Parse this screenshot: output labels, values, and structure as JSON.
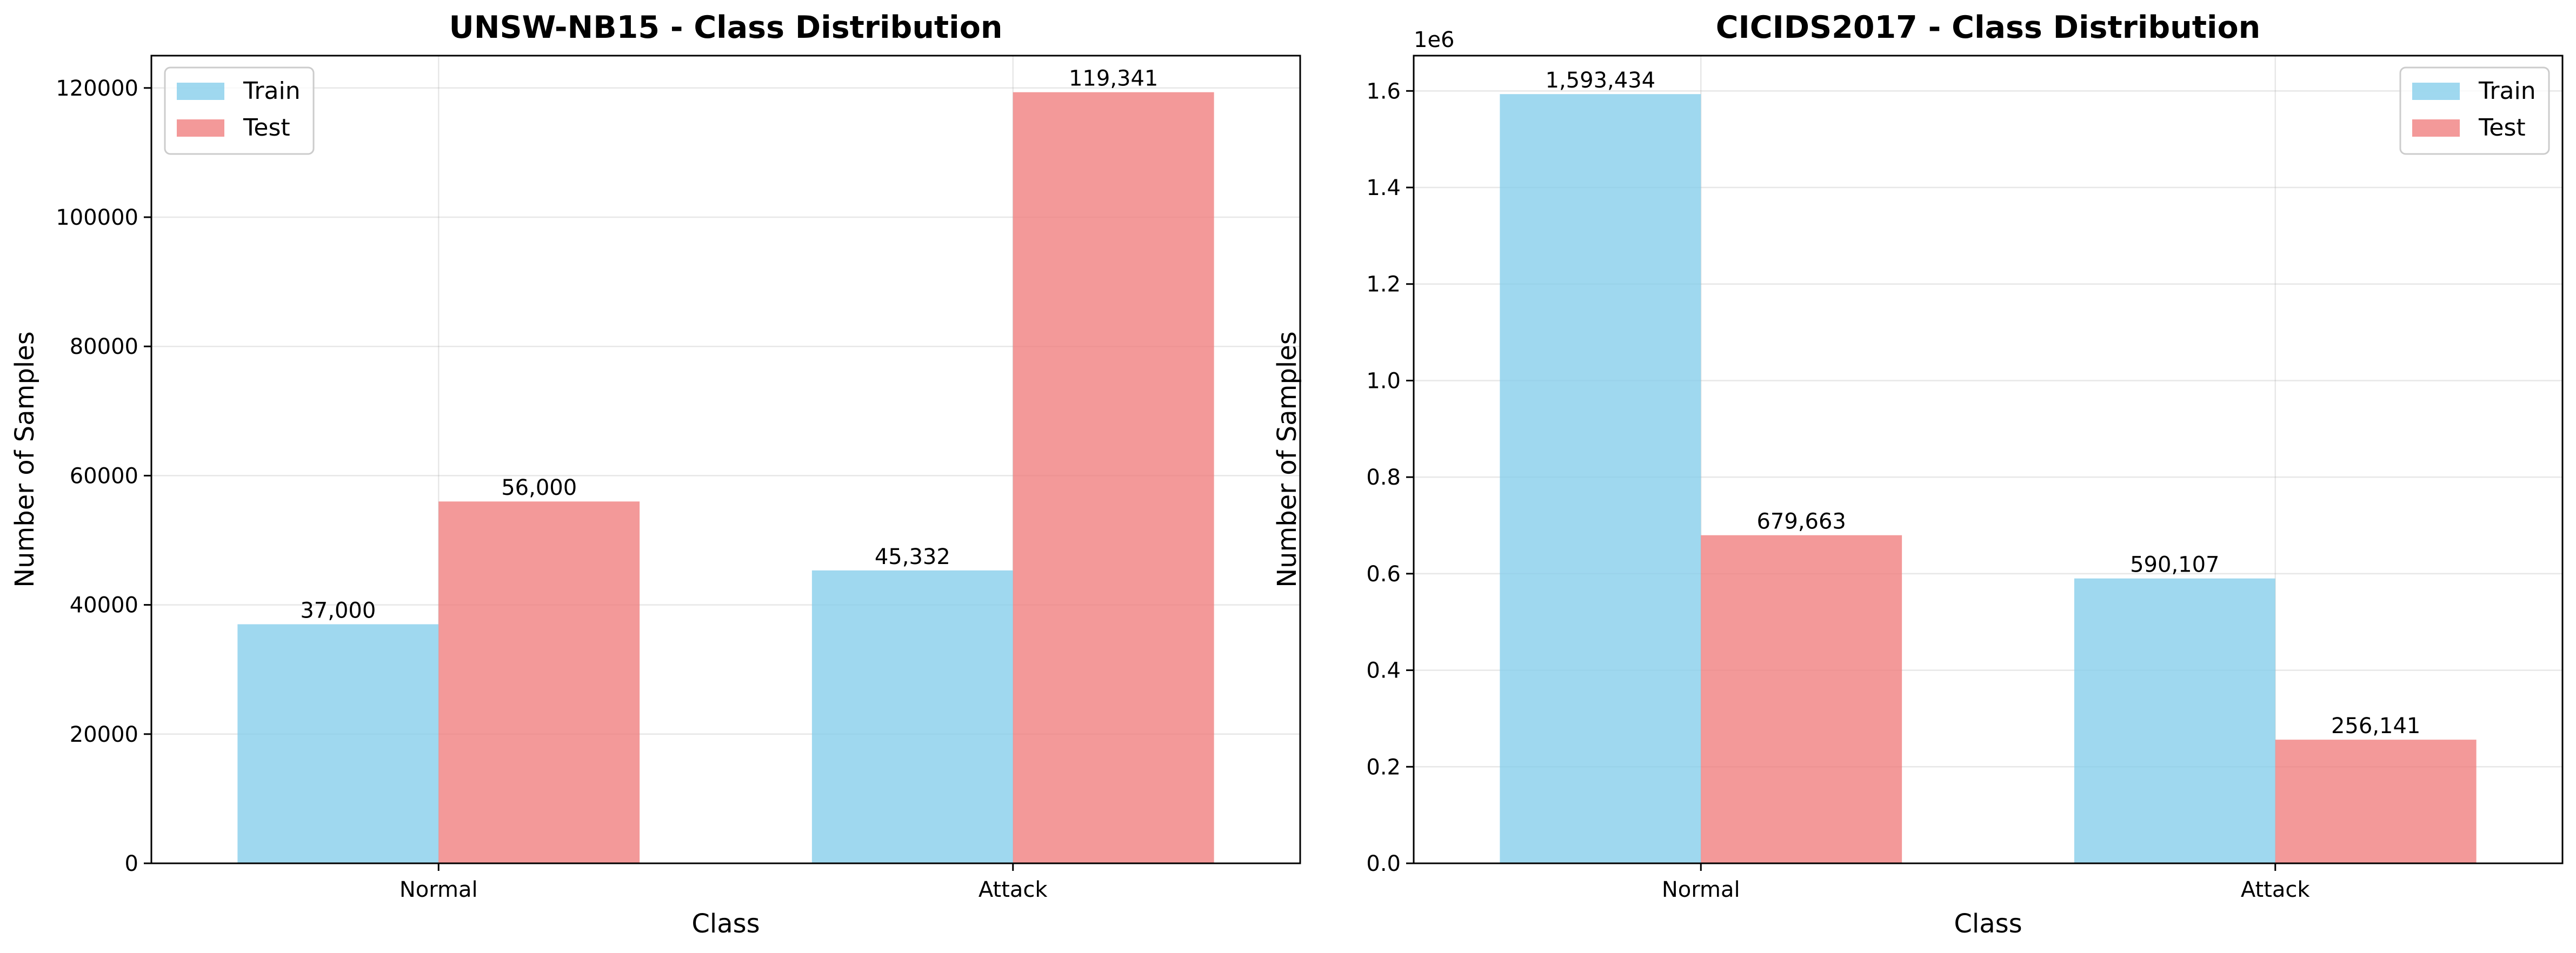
{
  "chart_data": [
    {
      "type": "bar",
      "title": "UNSW-NB15 - Class Distribution",
      "xlabel": "Class",
      "ylabel": "Number of Samples",
      "categories": [
        "Normal",
        "Attack"
      ],
      "series": [
        {
          "name": "Train",
          "values": [
            37000,
            45332
          ],
          "color": "#87CEEB"
        },
        {
          "name": "Test",
          "values": [
            56000,
            119341
          ],
          "color": "#F08080"
        }
      ],
      "value_labels": [
        [
          "37,000",
          "45,332"
        ],
        [
          "56,000",
          "119,341"
        ]
      ],
      "ylim": [
        0,
        125000
      ],
      "yticks": [
        0,
        20000,
        40000,
        60000,
        80000,
        100000,
        120000
      ],
      "ytick_labels": [
        "0",
        "20000",
        "40000",
        "60000",
        "80000",
        "100000",
        "120000"
      ],
      "offset_text": "",
      "legend_position": "top-left",
      "grid": true
    },
    {
      "type": "bar",
      "title": "CICIDS2017 - Class Distribution",
      "xlabel": "Class",
      "ylabel": "Number of Samples",
      "categories": [
        "Normal",
        "Attack"
      ],
      "series": [
        {
          "name": "Train",
          "values": [
            1593434,
            590107
          ],
          "color": "#87CEEB"
        },
        {
          "name": "Test",
          "values": [
            679663,
            256141
          ],
          "color": "#F08080"
        }
      ],
      "value_labels": [
        [
          "1,593,434",
          "590,107"
        ],
        [
          "679,663",
          "256,141"
        ]
      ],
      "ylim": [
        0,
        1673105
      ],
      "yticks": [
        0,
        200000,
        400000,
        600000,
        800000,
        1000000,
        1200000,
        1400000,
        1600000
      ],
      "ytick_labels": [
        "0.0",
        "0.2",
        "0.4",
        "0.6",
        "0.8",
        "1.0",
        "1.2",
        "1.4",
        "1.6"
      ],
      "offset_text": "1e6",
      "legend_position": "top-right",
      "grid": true
    }
  ]
}
